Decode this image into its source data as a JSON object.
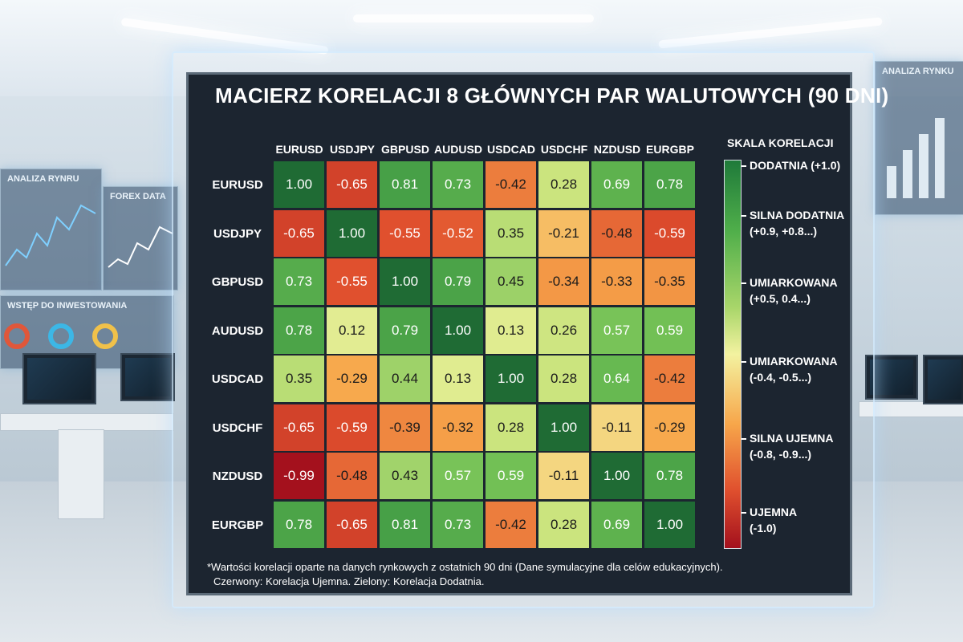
{
  "chart_data": {
    "type": "heatmap",
    "title": "MACIERZ KORELACJI 8 GŁÓWNYCH PAR WALUTOWYCH (90 DNI)",
    "columns": [
      "EURUSD",
      "USDJPY",
      "GBPUSD",
      "AUDUSD",
      "USDCAD",
      "USDCHF",
      "NZDUSD",
      "EURGBP"
    ],
    "rows": [
      "EURUSD",
      "USDJPY",
      "GBPUSD",
      "AUDUSD",
      "USDCAD",
      "USDCHF",
      "NZDUSD",
      "EURGBP"
    ],
    "values": [
      [
        1.0,
        -0.65,
        0.81,
        0.73,
        -0.42,
        0.28,
        0.69,
        0.78
      ],
      [
        -0.65,
        1.0,
        -0.55,
        -0.52,
        0.35,
        -0.21,
        -0.48,
        -0.59
      ],
      [
        0.73,
        -0.55,
        1.0,
        0.79,
        0.45,
        -0.34,
        -0.33,
        -0.35
      ],
      [
        0.78,
        0.12,
        0.79,
        1.0,
        0.13,
        0.26,
        0.57,
        0.59
      ],
      [
        0.35,
        -0.29,
        0.44,
        0.13,
        1.0,
        0.28,
        0.64,
        -0.42
      ],
      [
        -0.65,
        -0.59,
        -0.39,
        -0.32,
        0.28,
        1.0,
        -0.11,
        -0.29
      ],
      [
        -0.99,
        -0.48,
        0.43,
        0.57,
        0.59,
        -0.11,
        1.0,
        0.78
      ],
      [
        0.78,
        -0.65,
        0.81,
        0.73,
        -0.42,
        0.28,
        0.69,
        1.0
      ]
    ],
    "value_range": [
      -1.0,
      1.0
    ],
    "colors": {
      "negative": "#a3101d",
      "neutral": "#f3f2a0",
      "positive": "#1f7a3a"
    },
    "legend": {
      "title": "SKALA KORELACJI",
      "placement": "right",
      "entries": [
        [
          "DODATNIA (+1.0)"
        ],
        [
          "SILNA DODATNIA",
          "(+0.9, +0.8...)"
        ],
        [
          "UMIARKOWANA",
          "(+0.5, 0.4...)"
        ],
        [
          "UMIARKOWANA",
          "(-0.4, -0.5...)"
        ],
        [
          "SILNA UJEMNA",
          "(-0.8, -0.9...)"
        ],
        [
          "UJEMNA",
          "(-1.0)"
        ]
      ]
    },
    "footnote_line1": "*Wartości korelacji oparte na danych rynkowych z ostatnich 90 dni (Dane symulacyjne dla celów edukacyjnych).",
    "footnote_line2": "Czerwony: Korelacja Ujemna. Zielony: Korelacja Dodatnia."
  },
  "background": {
    "panels": [
      "ANALIZA RYNRU",
      "FOREX DATA",
      "WSTĘP DO INWESTOWANIA",
      "ANALIZA RYNKU"
    ]
  }
}
